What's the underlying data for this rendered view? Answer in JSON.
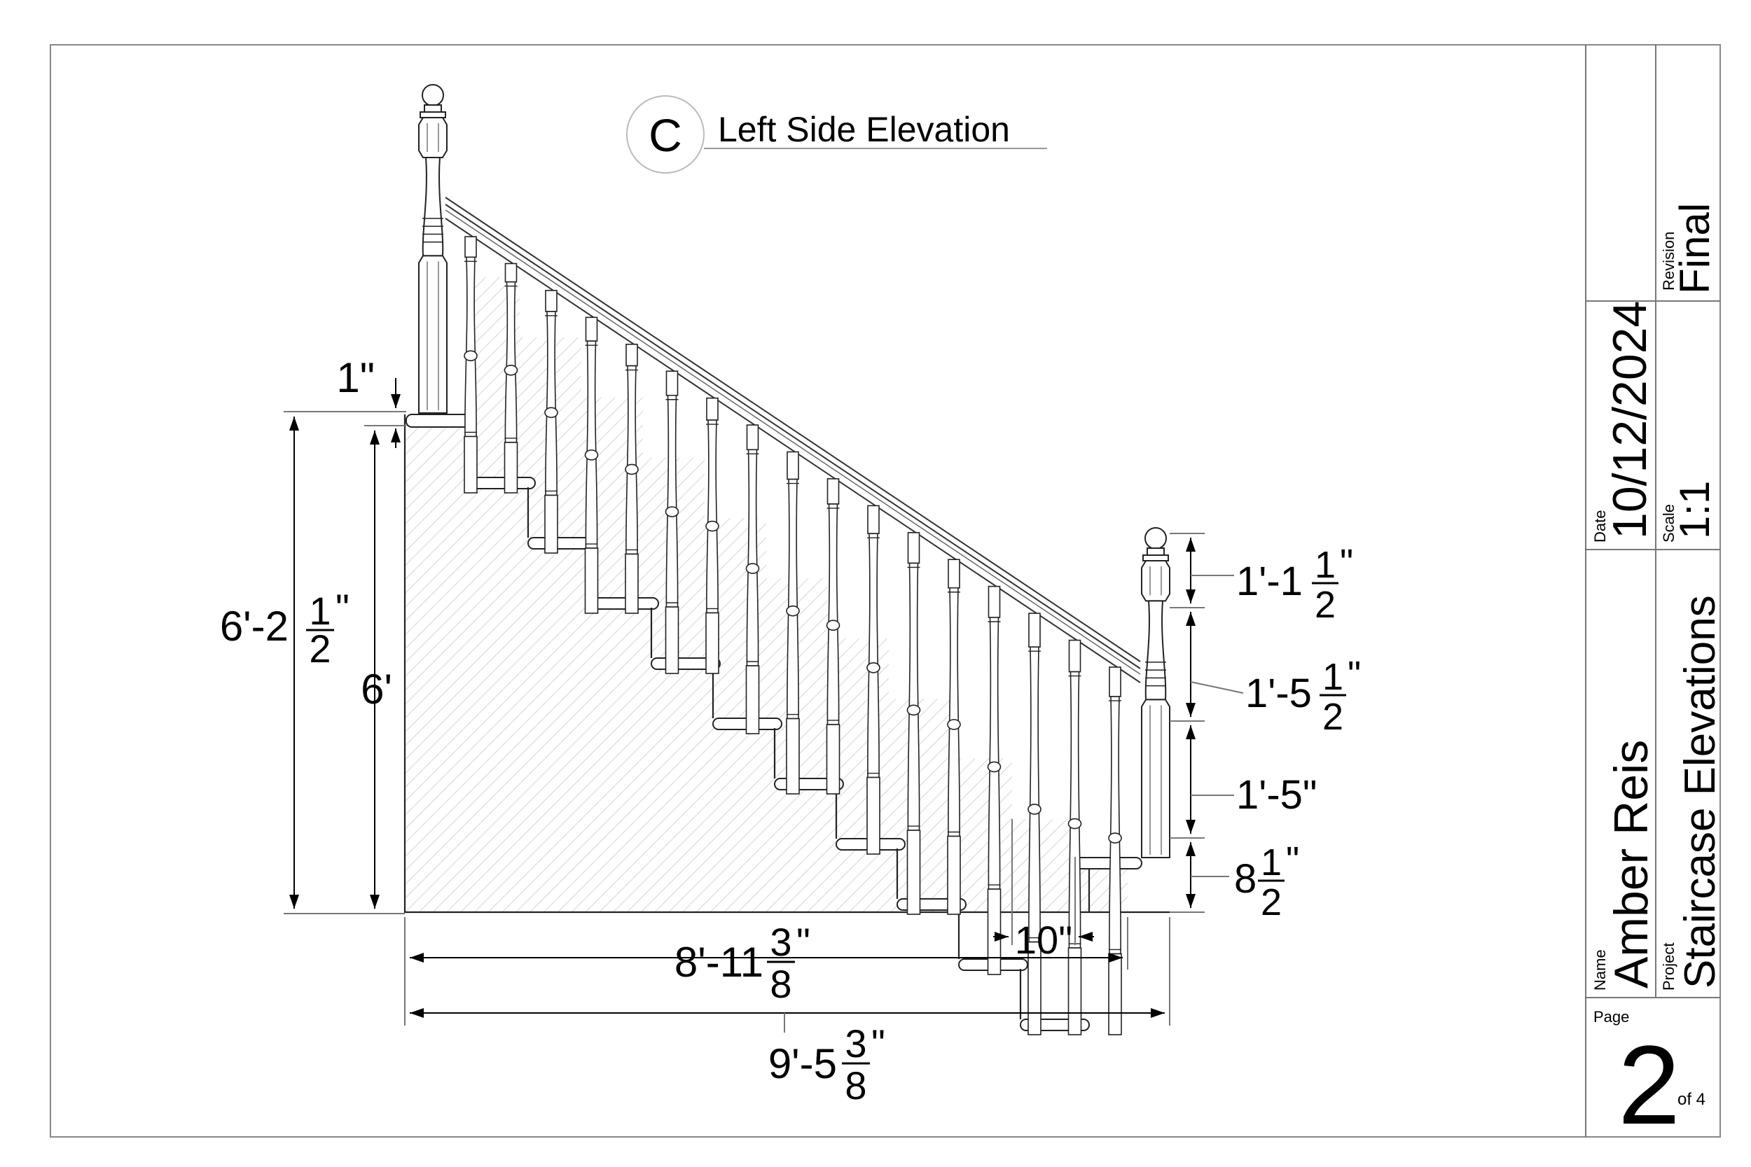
{
  "view": {
    "marker": "C",
    "title": "Left Side Elevation"
  },
  "dimensions": {
    "post_cap": {
      "whole": "1\""
    },
    "total_height": {
      "whole": "6'-2",
      "num": "1",
      "den": "2",
      "unit": "\""
    },
    "stair_height": {
      "whole": "6'"
    },
    "post_top": {
      "whole": "1'-1",
      "num": "1",
      "den": "2",
      "unit": "\""
    },
    "post_mid": {
      "whole": "1'-5",
      "num": "1",
      "den": "2",
      "unit": "\""
    },
    "post_low": {
      "whole": "1'-5\""
    },
    "post_base": {
      "whole": "8",
      "num": "1",
      "den": "2",
      "unit": "\""
    },
    "tread_depth": {
      "whole": "10\""
    },
    "run_length": {
      "whole": "8'-11",
      "num": "3",
      "den": "8",
      "unit": "\""
    },
    "total_length": {
      "whole": "9'-5",
      "num": "3",
      "den": "8",
      "unit": "\""
    }
  },
  "title_block": {
    "revision_label": "Revision",
    "revision_value": "Final",
    "date_label": "Date",
    "date_value": "10/12/2024",
    "scale_label": "Scale",
    "scale_value": "1:1",
    "name_label": "Name",
    "name_value": "Amber Reis",
    "project_label": "Project",
    "project_value": "Staircase Elevations",
    "page_label": "Page",
    "page_number": "2",
    "page_of": "of 4"
  }
}
